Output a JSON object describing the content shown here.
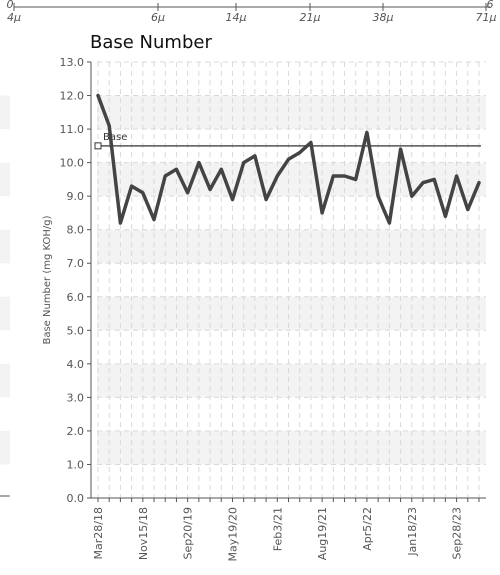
{
  "page": {
    "title": "Base Number"
  },
  "size_axis": {
    "labels": [
      "4μ",
      "6μ",
      "14μ",
      "21μ",
      "38μ",
      "71μ"
    ],
    "left_end": "0",
    "right_end": "6"
  },
  "chart_data": {
    "type": "line",
    "title": "Base Number",
    "xlabel": "",
    "ylabel": "Base Number (mg KOH/g)",
    "ylim": [
      0,
      13
    ],
    "yticks": [
      "0.0",
      "1.0",
      "2.0",
      "3.0",
      "4.0",
      "5.0",
      "6.0",
      "7.0",
      "8.0",
      "9.0",
      "10.0",
      "11.0",
      "12.0",
      "13.0"
    ],
    "xtick_labels": [
      "Mar28/18",
      "Nov15/18",
      "Sep20/19",
      "May19/20",
      "Feb3/21",
      "Aug19/21",
      "Apr5/22",
      "Jan18/23",
      "Sep28/23"
    ],
    "grid": true,
    "reference_line": {
      "label": "Base",
      "value": 10.5
    },
    "series": [
      {
        "values": [
          12.0,
          11.1,
          8.2,
          9.3,
          9.1,
          8.3,
          9.6,
          9.8,
          9.1,
          10.0,
          9.2,
          9.8,
          8.9,
          10.0,
          10.2,
          8.9,
          9.6,
          10.1,
          10.3,
          10.6,
          8.5,
          9.6,
          9.6,
          9.5,
          10.9,
          9.0,
          8.2,
          10.4,
          9.0,
          9.4,
          9.5,
          8.4,
          9.6,
          8.6,
          9.4
        ],
        "color": "#444444"
      }
    ]
  },
  "colors": {
    "line": "#444444",
    "reference": "#555555",
    "grid": "#d9d9d9",
    "band": "#f3f3f3"
  }
}
